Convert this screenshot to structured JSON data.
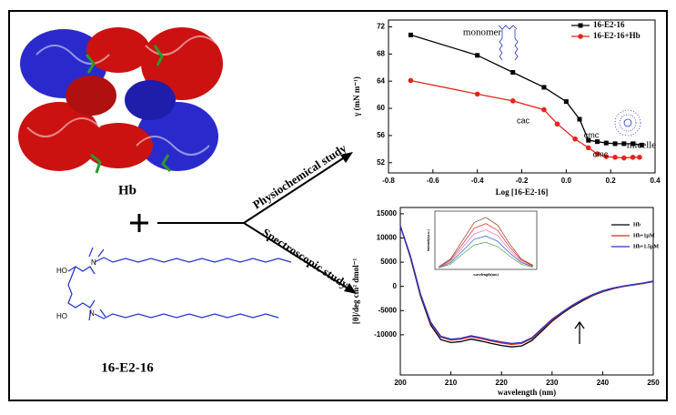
{
  "labels": {
    "protein": "Hb",
    "surfactant": "16-E2-16",
    "arrow_top": "Physiochemical study",
    "arrow_bottom": "Spectroscopic study"
  },
  "structure": {
    "atoms": [
      "HO",
      "N",
      "HO",
      "N"
    ]
  },
  "chart_data": [
    {
      "type": "line",
      "xlabel": "Log [16-E2-16]",
      "ylabel": "γ (mN m⁻¹)",
      "xlim": [
        -0.8,
        0.4
      ],
      "xticks": [
        -0.8,
        -0.6,
        -0.4,
        -0.2,
        {
          "value": 0,
          "label": "0.0"
        },
        0.2,
        0.4
      ],
      "ylim": [
        50.5,
        73
      ],
      "yticks": [
        52,
        56,
        60,
        64,
        68,
        72
      ],
      "series": [
        {
          "name": "16-E2-16",
          "color": "#000000",
          "marker": "square",
          "x": [
            -0.7,
            -0.4,
            -0.24,
            -0.1,
            0,
            0.06,
            0.1,
            0.14,
            0.18,
            0.22,
            0.26,
            0.3,
            0.34
          ],
          "values": [
            70.8,
            67.8,
            65.3,
            63.1,
            61,
            58.4,
            55.3,
            55.1,
            54.9,
            54.8,
            54.8,
            54.8,
            54.6
          ]
        },
        {
          "name": "16-E2-16+Hb",
          "color": "#e8231b",
          "marker": "circle",
          "x": [
            -0.7,
            -0.4,
            -0.24,
            -0.1,
            -0.04,
            0.04,
            0.1,
            0.14,
            0.18,
            0.22,
            0.26,
            0.3,
            0.33
          ],
          "values": [
            64.1,
            62.1,
            61.1,
            59.8,
            57.7,
            55.5,
            54.2,
            53.3,
            52.9,
            52.8,
            52.7,
            52.8,
            52.8
          ]
        }
      ],
      "annotations": [
        "monomer",
        "micelle",
        "cac",
        "cmc",
        "cmc"
      ]
    },
    {
      "type": "line",
      "xlabel": "wavelength (nm)",
      "ylabel": "[θ]/deg cm² dmol⁻¹",
      "xlim": [
        200,
        250
      ],
      "xticks": [
        200,
        210,
        220,
        230,
        240,
        250
      ],
      "ylim": [
        -18300,
        16300
      ],
      "yticks": [
        -10000,
        -5000,
        0,
        5000,
        10000,
        15000
      ],
      "series": [
        {
          "name": "Hb",
          "color": "#000000",
          "x": [
            200,
            202,
            204,
            206,
            208,
            210,
            212,
            214,
            216,
            218,
            220,
            222,
            224,
            226,
            228,
            230,
            232,
            234,
            236,
            238,
            240,
            242,
            244,
            246,
            248,
            250
          ],
          "values": [
            12500,
            6000,
            -2000,
            -8000,
            -11000,
            -11600,
            -11400,
            -10900,
            -11300,
            -11800,
            -12200,
            -12500,
            -12300,
            -11200,
            -9200,
            -7200,
            -5600,
            -4200,
            -3000,
            -1900,
            -1100,
            -500,
            -50,
            300,
            600,
            1000
          ]
        },
        {
          "name": "Hb+1μM",
          "color": "#e8231b",
          "x": [
            200,
            202,
            204,
            206,
            208,
            210,
            212,
            214,
            216,
            218,
            220,
            222,
            224,
            226,
            228,
            230,
            232,
            234,
            236,
            238,
            240,
            242,
            244,
            246,
            248,
            250
          ],
          "values": [
            12500,
            6200,
            -1700,
            -7600,
            -10500,
            -11100,
            -10900,
            -10400,
            -10800,
            -11300,
            -11700,
            -12000,
            -11800,
            -10800,
            -8900,
            -7000,
            -5400,
            -4000,
            -2800,
            -1800,
            -1000,
            -400,
            0,
            350,
            650,
            1050
          ]
        },
        {
          "name": "Hb+1.5μM",
          "color": "#2233cc",
          "x": [
            200,
            202,
            204,
            206,
            208,
            210,
            212,
            214,
            216,
            218,
            220,
            222,
            224,
            226,
            228,
            230,
            232,
            234,
            236,
            238,
            240,
            242,
            244,
            246,
            248,
            250
          ],
          "values": [
            12500,
            6300,
            -1600,
            -7400,
            -10300,
            -10900,
            -10700,
            -10200,
            -10600,
            -11100,
            -11500,
            -11800,
            -11600,
            -10600,
            -8700,
            -6800,
            -5300,
            -3900,
            -2700,
            -1700,
            -900,
            -350,
            50,
            400,
            700,
            1100
          ]
        }
      ]
    },
    {
      "type": "line",
      "xlabel": "wavelength(nm)",
      "ylabel": "intensity(a.u.)",
      "xlim": [
        275,
        405
      ],
      "ylim": [
        0,
        1.12
      ],
      "series": [
        {
          "color": "#8b3a1a",
          "x": [
            280,
            295,
            310,
            325,
            340,
            355,
            370,
            385,
            400
          ],
          "values": [
            0.05,
            0.2,
            0.55,
            0.9,
            1.0,
            0.85,
            0.5,
            0.2,
            0.08
          ]
        },
        {
          "color": "#e8231b",
          "x": [
            280,
            295,
            310,
            325,
            340,
            355,
            370,
            385,
            400
          ],
          "values": [
            0.04,
            0.18,
            0.48,
            0.79,
            0.88,
            0.75,
            0.44,
            0.18,
            0.07
          ]
        },
        {
          "color": "#e070c0",
          "x": [
            280,
            295,
            310,
            325,
            340,
            355,
            370,
            385,
            400
          ],
          "values": [
            0.04,
            0.15,
            0.42,
            0.68,
            0.76,
            0.65,
            0.38,
            0.15,
            0.06
          ]
        },
        {
          "color": "#3355dd",
          "x": [
            280,
            295,
            310,
            325,
            340,
            355,
            370,
            385,
            400
          ],
          "values": [
            0.03,
            0.13,
            0.35,
            0.58,
            0.64,
            0.54,
            0.32,
            0.13,
            0.05
          ]
        },
        {
          "color": "#44aa44",
          "x": [
            280,
            295,
            310,
            325,
            340,
            355,
            370,
            385,
            400
          ],
          "values": [
            0.03,
            0.1,
            0.29,
            0.47,
            0.52,
            0.44,
            0.26,
            0.1,
            0.04
          ]
        }
      ]
    }
  ]
}
